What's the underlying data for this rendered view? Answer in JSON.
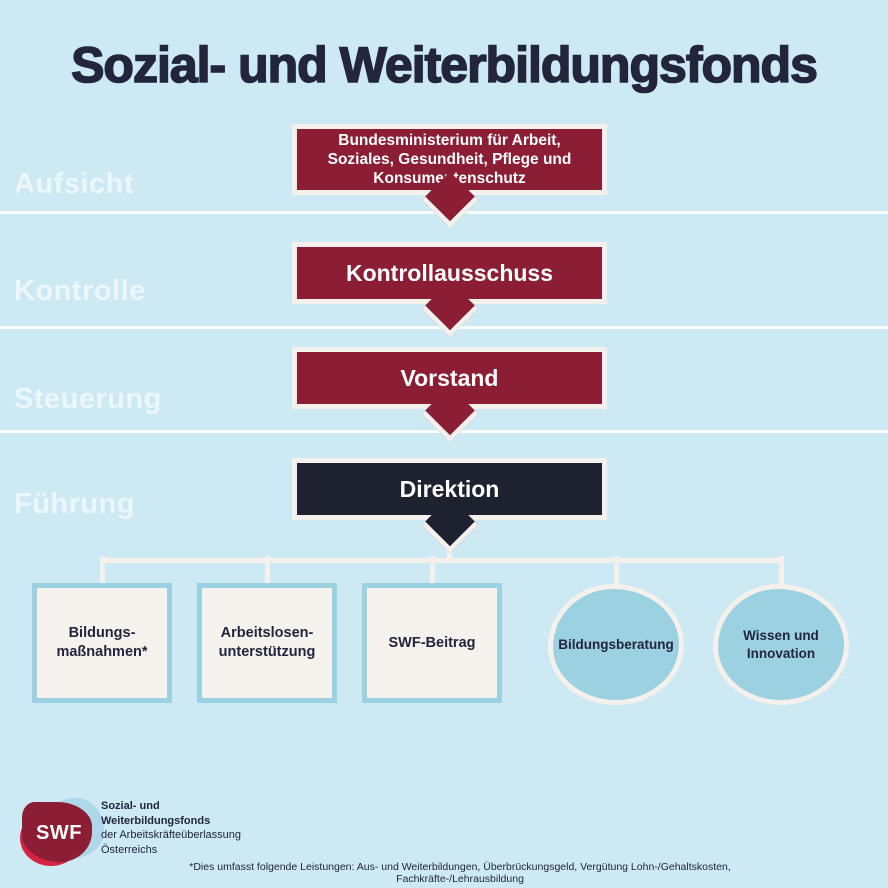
{
  "title": "Sozial- und Weiterbildungsfonds",
  "colors": {
    "background": "#cde9f3",
    "maroon": "#8b1e34",
    "navy": "#1d2130",
    "ink": "#22253c",
    "cream": "#f4f1ec",
    "leaf_fill": "#f6f3ee",
    "light_blue": "#9cd1e2",
    "logo_red": "#d52442",
    "logo_blue": "#aed8e9"
  },
  "row_labels": [
    {
      "label": "Aufsicht"
    },
    {
      "label": "Kontrolle"
    },
    {
      "label": "Steuerung"
    },
    {
      "label": "Führung"
    }
  ],
  "nodes": {
    "ministry": {
      "lines": [
        "Bundesministerium für Arbeit,",
        "Soziales, Gesundheit, Pflege und",
        "Konsumentenschutz"
      ]
    },
    "kontrollausschuss": {
      "label": "Kontrollausschuss"
    },
    "vorstand": {
      "label": "Vorstand"
    },
    "direktion": {
      "label": "Direktion"
    }
  },
  "leaves": {
    "squares": [
      {
        "lines": [
          "Bildungs-",
          "maßnahmen*"
        ]
      },
      {
        "lines": [
          "Arbeitslosen-",
          "unterstützung"
        ]
      },
      {
        "lines": [
          "SWF-Beitrag"
        ]
      }
    ],
    "circles": [
      {
        "lines": [
          "Bildungsberatung"
        ]
      },
      {
        "lines": [
          "Wissen und",
          "Innovation"
        ]
      }
    ]
  },
  "logo": {
    "monogram": "SWF",
    "lines": [
      "Sozial- und",
      "Weiterbildungsfonds",
      "der Arbeitskräfteüberlassung",
      "Österreichs"
    ]
  },
  "footnote": "*Dies umfasst folgende Leistungen: Aus- und Weiterbildungen, Überbrückungsgeld, Vergütung Lohn-/Gehaltskosten, Fachkräfte-/Lehrausbildung"
}
